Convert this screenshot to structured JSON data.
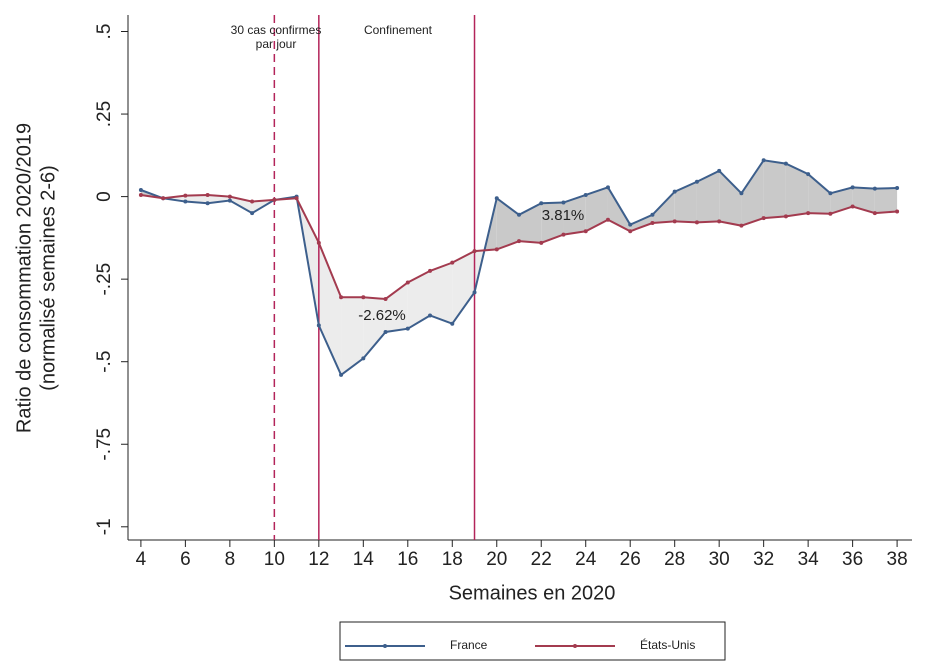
{
  "chart_data": {
    "type": "line",
    "y_label": [
      "Ratio de consommation 2020/2019",
      "(normalisé semaines 2-6)"
    ],
    "x_label": "Semaines en 2020",
    "x": [
      4,
      5,
      6,
      7,
      8,
      9,
      10,
      11,
      12,
      13,
      14,
      15,
      16,
      17,
      18,
      19,
      20,
      21,
      22,
      23,
      24,
      25,
      26,
      27,
      28,
      29,
      30,
      31,
      32,
      33,
      34,
      35,
      36,
      37,
      38
    ],
    "series": [
      {
        "name": "France",
        "color": "#3d5f8c",
        "values": [
          0.02,
          -0.005,
          -0.015,
          -0.02,
          -0.012,
          -0.05,
          -0.01,
          0.0,
          -0.39,
          -0.54,
          -0.49,
          -0.41,
          -0.4,
          -0.36,
          -0.385,
          -0.29,
          -0.005,
          -0.055,
          -0.02,
          -0.018,
          0.005,
          0.028,
          -0.085,
          -0.055,
          0.015,
          0.045,
          0.078,
          0.01,
          0.11,
          0.1,
          0.068,
          0.01,
          0.028,
          0.024,
          0.026
        ]
      },
      {
        "name": "États-Unis",
        "color": "#a33b4f",
        "values": [
          0.005,
          -0.005,
          0.003,
          0.005,
          0.0,
          -0.015,
          -0.01,
          -0.005,
          -0.14,
          -0.305,
          -0.305,
          -0.31,
          -0.26,
          -0.225,
          -0.2,
          -0.165,
          -0.16,
          -0.135,
          -0.14,
          -0.115,
          -0.105,
          -0.07,
          -0.105,
          -0.08,
          -0.075,
          -0.078,
          -0.075,
          -0.088,
          -0.065,
          -0.06,
          -0.05,
          -0.052,
          -0.03,
          -0.05,
          -0.045
        ]
      }
    ],
    "fill_colors": {
      "below": "#ececec",
      "above": "#c9c9c9"
    },
    "xlim": [
      3.42,
      38.67
    ],
    "ylim": [
      -1.04,
      0.55
    ],
    "xticks": [
      4,
      6,
      8,
      10,
      12,
      14,
      16,
      18,
      20,
      22,
      24,
      26,
      28,
      30,
      32,
      34,
      36,
      38
    ],
    "yticks": [
      {
        "value": 0.5,
        "label": ".5"
      },
      {
        "value": 0.25,
        "label": ".25"
      },
      0,
      {
        "value": -0.25,
        "label": "-.25"
      },
      {
        "value": -0.5,
        "label": "-.5"
      },
      {
        "value": -0.75,
        "label": "-.75"
      },
      -1
    ],
    "vlines": [
      {
        "x": 10,
        "style": "dashed"
      },
      {
        "x": 12,
        "style": "solid"
      },
      {
        "x": 19,
        "style": "solid"
      }
    ],
    "vline_color": "#b3245a",
    "annotations": [
      "30 cas confirmes",
      "par jour",
      "Confinement",
      "-2.62%",
      "3.81%"
    ]
  }
}
